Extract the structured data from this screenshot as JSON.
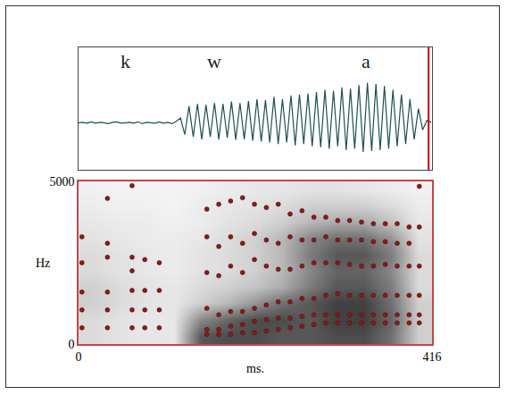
{
  "chart_data": [
    {
      "type": "line",
      "annotations": [
        {
          "text": "k",
          "x": 55
        },
        {
          "text": "w",
          "x": 160
        },
        {
          "text": "a",
          "x": 338
        }
      ],
      "x": [
        0,
        5,
        10,
        15,
        20,
        25,
        30,
        35,
        40,
        45,
        50,
        55,
        60,
        65,
        70,
        75,
        80,
        85,
        90,
        95,
        100,
        105,
        110,
        115,
        120,
        125,
        130,
        135,
        140,
        145,
        150,
        155,
        160,
        165,
        170,
        175,
        180,
        185,
        190,
        195,
        200,
        205,
        210,
        215,
        220,
        225,
        230,
        235,
        240,
        245,
        250,
        255,
        260,
        265,
        270,
        275,
        280,
        285,
        290,
        295,
        300,
        305,
        310,
        315,
        320,
        325,
        330,
        335,
        340,
        345,
        350,
        355,
        360,
        365,
        370,
        375,
        380,
        385,
        390,
        395,
        400,
        405,
        410,
        415
      ],
      "values": [
        0,
        0.01,
        -0.01,
        0.02,
        -0.01,
        0.01,
        0,
        -0.02,
        0.01,
        0.02,
        -0.01,
        0,
        0.01,
        -0.01,
        0.02,
        -0.02,
        0.01,
        0,
        -0.01,
        0.02,
        -0.01,
        0.01,
        -0.02,
        0.03,
        0.1,
        -0.25,
        0.35,
        -0.3,
        0.4,
        -0.35,
        0.38,
        -0.3,
        0.42,
        -0.35,
        0.4,
        -0.32,
        0.45,
        -0.36,
        0.42,
        -0.35,
        0.46,
        -0.38,
        0.5,
        -0.4,
        0.48,
        -0.42,
        0.55,
        -0.45,
        0.5,
        -0.42,
        0.58,
        -0.48,
        0.6,
        -0.45,
        0.62,
        -0.5,
        0.65,
        -0.52,
        0.7,
        -0.55,
        0.68,
        -0.5,
        0.75,
        -0.58,
        0.72,
        -0.55,
        0.8,
        -0.62,
        0.85,
        -0.6,
        0.82,
        -0.58,
        0.78,
        -0.55,
        0.7,
        -0.5,
        0.6,
        -0.45,
        0.5,
        -0.35,
        0.3,
        -0.15,
        0.05,
        0.01
      ],
      "color": "#1f4f4f",
      "xlim": [
        0,
        416
      ],
      "ylim": [
        -1,
        1.6
      ],
      "tick_labels": false,
      "cursor": 412
    },
    {
      "type": "heatmap",
      "x_label": "ms.",
      "y_label": "Hz",
      "x": [
        16,
        48,
        80,
        112,
        144,
        176,
        208,
        240,
        272,
        304,
        336,
        368,
        400
      ],
      "y": [
        250,
        750,
        1250,
        1750,
        2250,
        2750,
        3250,
        3750,
        4250,
        4750
      ],
      "cells": [
        [
          0.15,
          0.12,
          0.1,
          0.1,
          0.7,
          0.75,
          0.75,
          0.7,
          0.7,
          0.75,
          0.75,
          0.6,
          0.2
        ],
        [
          0.15,
          0.12,
          0.1,
          0.1,
          0.5,
          0.65,
          0.75,
          0.75,
          0.7,
          0.8,
          0.8,
          0.65,
          0.2
        ],
        [
          0.2,
          0.15,
          0.12,
          0.1,
          0.2,
          0.3,
          0.45,
          0.6,
          0.7,
          0.8,
          0.8,
          0.6,
          0.2
        ],
        [
          0.2,
          0.15,
          0.12,
          0.1,
          0.15,
          0.2,
          0.25,
          0.35,
          0.55,
          0.7,
          0.7,
          0.55,
          0.15
        ],
        [
          0.15,
          0.12,
          0.1,
          0.08,
          0.12,
          0.15,
          0.2,
          0.3,
          0.5,
          0.65,
          0.65,
          0.5,
          0.15
        ],
        [
          0.15,
          0.12,
          0.1,
          0.08,
          0.12,
          0.15,
          0.2,
          0.3,
          0.55,
          0.7,
          0.7,
          0.55,
          0.15
        ],
        [
          0.12,
          0.1,
          0.08,
          0.08,
          0.1,
          0.15,
          0.2,
          0.3,
          0.5,
          0.6,
          0.6,
          0.45,
          0.12
        ],
        [
          0.1,
          0.08,
          0.08,
          0.06,
          0.08,
          0.12,
          0.15,
          0.2,
          0.3,
          0.35,
          0.35,
          0.25,
          0.1
        ],
        [
          0.08,
          0.06,
          0.06,
          0.05,
          0.08,
          0.1,
          0.12,
          0.15,
          0.2,
          0.2,
          0.2,
          0.15,
          0.08
        ],
        [
          0.06,
          0.05,
          0.05,
          0.05,
          0.06,
          0.08,
          0.1,
          0.1,
          0.12,
          0.12,
          0.1,
          0.08,
          0.06
        ]
      ],
      "zlim": [
        0,
        1
      ],
      "xlim": [
        0,
        416
      ],
      "ylim": [
        0,
        5000
      ],
      "xticks": [
        0,
        416
      ],
      "yticks": [
        0,
        5000
      ],
      "series": [
        {
          "type": "scatter",
          "marker": "circle",
          "color": "#8b1a1a",
          "points": [
            {
              "x": 4,
              "values": [
                3300,
                2500,
                1600,
                1050,
                500
              ]
            },
            {
              "x": 34,
              "values": [
                4480,
                3100,
                2670,
                1600,
                1050,
                500
              ]
            },
            {
              "x": 63,
              "values": [
                4870,
                2670,
                2250,
                1650,
                1050,
                500
              ]
            },
            {
              "x": 78,
              "values": [
                2600,
                1650,
                1050,
                500
              ]
            },
            {
              "x": 95,
              "values": [
                2500,
                1650,
                1050,
                500
              ]
            },
            {
              "x": 151,
              "values": [
                4150,
                3300,
                2200,
                1100,
                450,
                300
              ]
            },
            {
              "x": 165,
              "values": [
                4300,
                3000,
                2100,
                900,
                450,
                300
              ]
            },
            {
              "x": 179,
              "values": [
                4400,
                3300,
                2400,
                1000,
                550,
                300
              ]
            },
            {
              "x": 193,
              "values": [
                4500,
                3100,
                2200,
                1000,
                600,
                350
              ]
            },
            {
              "x": 207,
              "values": [
                4300,
                3400,
                2600,
                1100,
                700,
                350
              ]
            },
            {
              "x": 221,
              "values": [
                4200,
                3200,
                2400,
                1200,
                750,
                400
              ]
            },
            {
              "x": 235,
              "values": [
                4300,
                3100,
                2300,
                1300,
                800,
                450
              ]
            },
            {
              "x": 249,
              "values": [
                4000,
                3300,
                2300,
                1300,
                800,
                500
              ]
            },
            {
              "x": 263,
              "values": [
                4100,
                3200,
                2400,
                1400,
                850,
                550
              ]
            },
            {
              "x": 277,
              "values": [
                3900,
                3200,
                2500,
                1400,
                900,
                600
              ]
            },
            {
              "x": 291,
              "values": [
                3900,
                3300,
                2500,
                1500,
                900,
                650
              ]
            },
            {
              "x": 305,
              "values": [
                3800,
                3200,
                2500,
                1550,
                900,
                650
              ]
            },
            {
              "x": 319,
              "values": [
                3800,
                3200,
                2450,
                1500,
                900,
                650
              ]
            },
            {
              "x": 333,
              "values": [
                3750,
                3200,
                2400,
                1500,
                900,
                650
              ]
            },
            {
              "x": 347,
              "values": [
                3700,
                3150,
                2400,
                1500,
                900,
                650
              ]
            },
            {
              "x": 361,
              "values": [
                3700,
                3150,
                2450,
                1500,
                900,
                650
              ]
            },
            {
              "x": 375,
              "values": [
                3700,
                3100,
                2400,
                1500,
                900,
                650
              ]
            },
            {
              "x": 389,
              "values": [
                3600,
                3100,
                2400,
                1500,
                900,
                650
              ]
            },
            {
              "x": 401,
              "values": [
                4850,
                3600,
                2400,
                1500,
                900,
                650
              ]
            }
          ]
        }
      ]
    }
  ]
}
